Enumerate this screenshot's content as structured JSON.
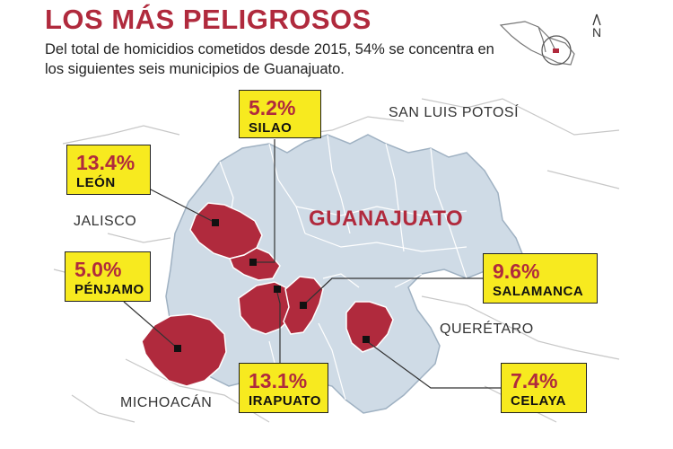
{
  "header": {
    "title": "LOS MÁS PELIGROSOS",
    "subtitle": "Del total de homicidios cometidos desde 2015, 54% se concentra en los siguientes seis municipios de Guanajuato."
  },
  "regions": {
    "san_luis": "SAN LUIS POTOSÍ",
    "jalisco": "JALISCO",
    "queretaro": "QUERÉTARO",
    "michoacan": "MICHOACÁN",
    "guanajuato": "GUANAJUATO"
  },
  "locator": {
    "north_label": "N"
  },
  "municipalities": [
    {
      "name": "SILAO",
      "pct": "5.2%"
    },
    {
      "name": "LEÓN",
      "pct": "13.4%"
    },
    {
      "name": "PÉNJAMO",
      "pct": "5.0%"
    },
    {
      "name": "SALAMANCA",
      "pct": "9.6%"
    },
    {
      "name": "IRAPUATO",
      "pct": "13.1%"
    },
    {
      "name": "CELAYA",
      "pct": "7.4%"
    }
  ],
  "colors": {
    "highlight": "#b02a3d",
    "state_fill": "#cfdbe6",
    "callout_fill": "#f7ea1f",
    "border": "#9fb1c2"
  }
}
